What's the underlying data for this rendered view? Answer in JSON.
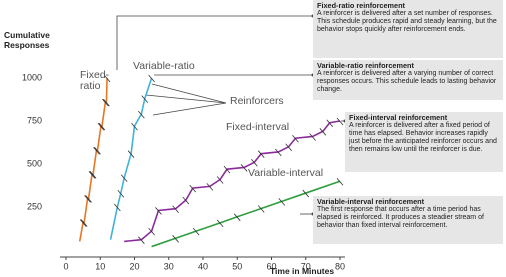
{
  "chart_data": {
    "type": "line",
    "y_label": "Cumulative Responses",
    "x_label": "Time in Minutes",
    "xlim": [
      0,
      80
    ],
    "xticks": [
      0,
      10,
      20,
      30,
      40,
      50,
      60,
      70,
      80
    ],
    "ylim": [
      0,
      1000
    ],
    "yticks": [
      250,
      500,
      750,
      1000
    ],
    "series": [
      {
        "name": "Fixed-ratio",
        "color": "#e87722",
        "x": [
          4,
          5,
          5.3,
          6.3,
          6.6,
          7.6,
          7.9,
          8.9,
          9.2,
          10.2,
          10.5,
          11.5,
          11.8,
          12
        ],
        "values": [
          50,
          160,
          160,
          300,
          300,
          440,
          440,
          580,
          580,
          720,
          720,
          860,
          860,
          1000
        ]
      },
      {
        "name": "Variable-ratio",
        "color": "#3fb3d9",
        "x": [
          13,
          15,
          16,
          17,
          19,
          20,
          22,
          23,
          25
        ],
        "values": [
          60,
          250,
          330,
          420,
          560,
          720,
          790,
          880,
          1000
        ]
      },
      {
        "name": "Fixed-interval",
        "color": "#8b2a9b",
        "x": [
          17,
          22,
          25,
          27,
          32,
          35,
          37,
          42,
          45,
          47,
          52,
          55,
          57,
          62,
          65,
          67,
          72,
          75,
          77,
          80
        ],
        "values": [
          50,
          60,
          110,
          230,
          240,
          290,
          360,
          370,
          410,
          470,
          480,
          510,
          560,
          570,
          600,
          650,
          660,
          690,
          740,
          750
        ]
      },
      {
        "name": "Variable-interval",
        "color": "#2e9e3e",
        "x": [
          25,
          32,
          38,
          45,
          50,
          57,
          63,
          70,
          80
        ],
        "values": [
          20,
          68,
          110,
          158,
          193,
          241,
          283,
          331,
          400
        ]
      }
    ],
    "reinforcers_label": "Reinforcers",
    "annotations": [
      {
        "title": "Fixed-ratio reinforcement",
        "text": "A reinforcer is delivered after a set number of responses. This schedule produces rapid and steady learning, but the behavior stops quickly after reinforcement ends."
      },
      {
        "title": "Variable-ratio reinforcement",
        "text": "A reinforcer is delivered after a varying number of correct responses occurs. This schedule leads to lasting behavior change."
      },
      {
        "title": "Fixed-interval reinforcement",
        "text": "A reinforcer is delivered after a fixed period of time has elapsed. Behavior increases rapidly just before the anticipated reinforcer occurs and then remains low until the reinforcer is due."
      },
      {
        "title": "Variable-interval reinforcement",
        "text": "The first response that occurs after a time period has elapsed is reinforced. It produces a steadier stream of behavior than fixed interval reinforcement."
      }
    ]
  }
}
